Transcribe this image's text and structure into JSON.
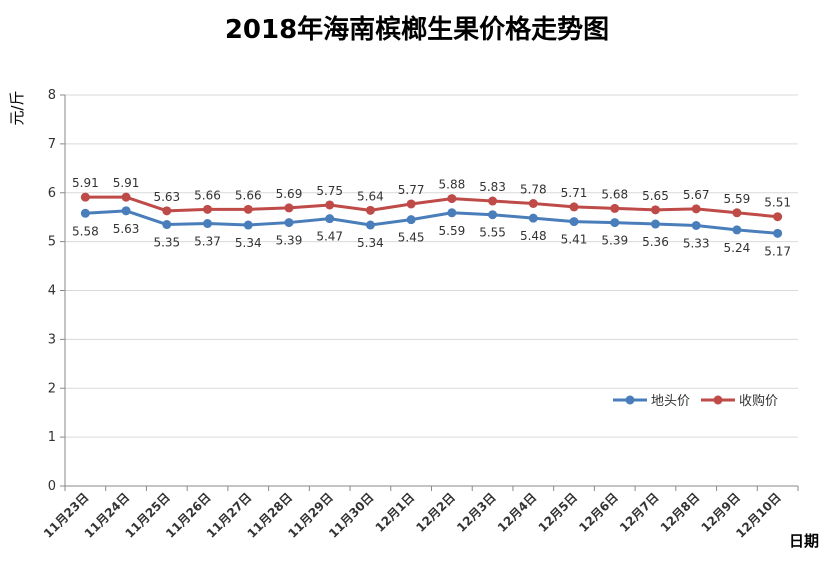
{
  "chart_data": {
    "type": "line",
    "title": "2018年海南槟榔生果价格走势图",
    "ylabel": "元/斤",
    "xlabel": "日期",
    "ylim": [
      0,
      8
    ],
    "yticks": [
      0,
      1,
      2,
      3,
      4,
      5,
      6,
      7,
      8
    ],
    "grid": true,
    "legend_position": "right",
    "categories": [
      "11月23日",
      "11月24日",
      "11月25日",
      "11月26日",
      "11月27日",
      "11月28日",
      "11月29日",
      "11月30日",
      "12月1日",
      "12月2日",
      "12月3日",
      "12月4日",
      "12月5日",
      "12月6日",
      "12月7日",
      "12月8日",
      "12月9日",
      "12月10日"
    ],
    "series": [
      {
        "name": "地头价",
        "color": "#4a7ebb",
        "values": [
          5.58,
          5.63,
          5.35,
          5.37,
          5.34,
          5.39,
          5.47,
          5.34,
          5.45,
          5.59,
          5.55,
          5.48,
          5.41,
          5.39,
          5.36,
          5.33,
          5.24,
          5.17
        ],
        "labels": [
          "5.58",
          "5.63",
          "5.35",
          "5.37",
          "5.34",
          "5.39",
          "5.47",
          "5.34",
          "5.45",
          "5.59",
          "5.55",
          "5.48",
          "5.41",
          "5.39",
          "5.36",
          "5.33",
          "5.24",
          "5.17"
        ]
      },
      {
        "name": "收购价",
        "color": "#be4b48",
        "values": [
          5.91,
          5.91,
          5.63,
          5.66,
          5.66,
          5.69,
          5.75,
          5.64,
          5.77,
          5.88,
          5.83,
          5.78,
          5.71,
          5.68,
          5.65,
          5.67,
          5.59,
          5.51
        ],
        "labels": [
          "5.91",
          "5.91",
          "5.63",
          "5.66",
          "5.66",
          "5.69",
          "5.75",
          "5.64",
          "5.77",
          "5.88",
          "5.83",
          "5.78",
          "5.71",
          "5.68",
          "5.65",
          "5.67",
          "5.59",
          "5.51"
        ]
      }
    ]
  }
}
